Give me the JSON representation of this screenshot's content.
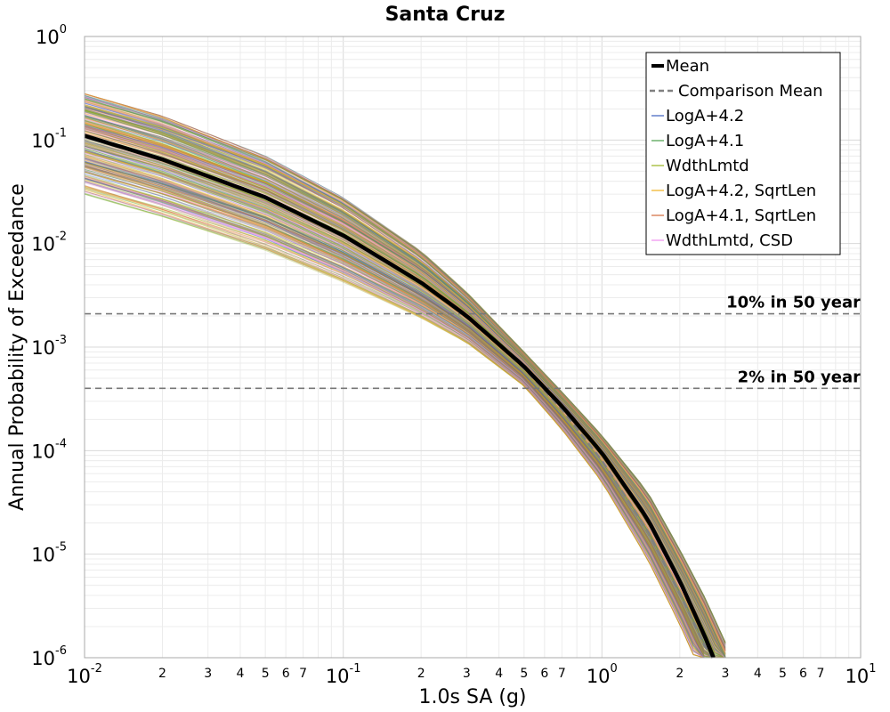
{
  "chart_data": {
    "type": "line",
    "title": "Santa Cruz",
    "xlabel": "1.0s SA (g)",
    "ylabel": "Annual Probability of Exceedance",
    "x_scale": "log",
    "y_scale": "log",
    "xlim": [
      0.01,
      10
    ],
    "ylim": [
      1e-06,
      1
    ],
    "grid": true,
    "legend_position": "top-right",
    "x_major_ticks": [
      {
        "base": "10",
        "exp": "-2"
      },
      {
        "base": "10",
        "exp": "-1"
      },
      {
        "base": "10",
        "exp": "0"
      },
      {
        "base": "10",
        "exp": "1"
      }
    ],
    "y_major_ticks": [
      {
        "base": "10",
        "exp": "0"
      },
      {
        "base": "10",
        "exp": "-1"
      },
      {
        "base": "10",
        "exp": "-2"
      },
      {
        "base": "10",
        "exp": "-3"
      },
      {
        "base": "10",
        "exp": "-4"
      },
      {
        "base": "10",
        "exp": "-5"
      },
      {
        "base": "10",
        "exp": "-6"
      }
    ],
    "x_minor_tick_labels": [
      "2",
      "3",
      "4",
      "5",
      "6",
      "7"
    ],
    "series": [
      {
        "name": "Mean",
        "color": "#000000",
        "style": "solid",
        "x": [
          0.01,
          0.02,
          0.05,
          0.1,
          0.2,
          0.3,
          0.5,
          0.7,
          1.0,
          1.5,
          2.0,
          2.5,
          2.7
        ],
        "y": [
          0.11,
          0.065,
          0.028,
          0.012,
          0.0042,
          0.002,
          0.00065,
          0.00027,
          9.5e-05,
          2.2e-05,
          5.5e-06,
          1.6e-06,
          1e-06
        ]
      },
      {
        "name": "Comparison Mean",
        "color": "#808080",
        "style": "dashed",
        "x": [
          0.01,
          0.02,
          0.05,
          0.1,
          0.2,
          0.3,
          0.5,
          0.7,
          1.0,
          1.5,
          2.0,
          2.5,
          2.65
        ],
        "y": [
          0.11,
          0.065,
          0.028,
          0.012,
          0.0042,
          0.002,
          0.00062,
          0.00025,
          8e-05,
          1.7e-05,
          4.2e-06,
          1.3e-06,
          1e-06
        ]
      },
      {
        "name": "LogA+4.2",
        "color": "#3c5fbf",
        "style": "solid"
      },
      {
        "name": "LogA+4.1",
        "color": "#4a9e4a",
        "style": "solid"
      },
      {
        "name": "WdthLmtd",
        "color": "#9ab520",
        "style": "solid"
      },
      {
        "name": "LogA+4.2, SqrtLen",
        "color": "#f0b020",
        "style": "solid"
      },
      {
        "name": "LogA+4.1, SqrtLen",
        "color": "#d2693c",
        "style": "solid"
      },
      {
        "name": "WdthLmtd, CSD",
        "color": "#f090f0",
        "style": "solid"
      }
    ],
    "branch_band": {
      "description_x": [
        0.01,
        0.02,
        0.05,
        0.1,
        0.2,
        0.3,
        0.5,
        0.7,
        1.0,
        1.5,
        2.0,
        2.5,
        3.0
      ],
      "upper_y": [
        0.28,
        0.17,
        0.07,
        0.028,
        0.0085,
        0.0034,
        0.0009,
        0.00037,
        0.00014,
        4e-05,
        1.1e-05,
        3.8e-06,
        1.4e-06
      ],
      "lower_y": [
        0.03,
        0.018,
        0.0085,
        0.0042,
        0.0019,
        0.0011,
        0.00042,
        0.00016,
        5e-05,
        9e-06,
        2.1e-06,
        6e-07,
        2e-07
      ]
    },
    "reference_lines": [
      {
        "label": "10% in 50 year",
        "y": 0.0021
      },
      {
        "label": "2% in 50 year",
        "y": 0.0004
      }
    ]
  }
}
